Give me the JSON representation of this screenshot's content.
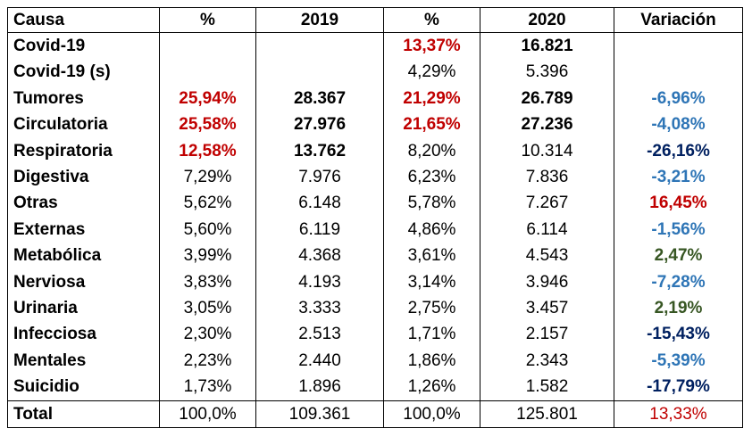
{
  "table": {
    "headers": [
      "Causa",
      "%",
      "2019",
      "%",
      "2020",
      "Variación"
    ],
    "rows": [
      {
        "cause": "Covid-19",
        "pct2019": "",
        "v2019": "",
        "pct2020": "13,37%",
        "v2020": "16.821",
        "variation": ""
      },
      {
        "cause": "Covid-19 (s)",
        "pct2019": "",
        "v2019": "",
        "pct2020": "4,29%",
        "v2020": "5.396",
        "variation": ""
      },
      {
        "cause": "Tumores",
        "pct2019": "25,94%",
        "v2019": "28.367",
        "pct2020": "21,29%",
        "v2020": "26.789",
        "variation": "-6,96%"
      },
      {
        "cause": "Circulatoria",
        "pct2019": "25,58%",
        "v2019": "27.976",
        "pct2020": "21,65%",
        "v2020": "27.236",
        "variation": "-4,08%"
      },
      {
        "cause": "Respiratoria",
        "pct2019": "12,58%",
        "v2019": "13.762",
        "pct2020": "8,20%",
        "v2020": "10.314",
        "variation": "-26,16%"
      },
      {
        "cause": "Digestiva",
        "pct2019": "7,29%",
        "v2019": "7.976",
        "pct2020": "6,23%",
        "v2020": "7.836",
        "variation": "-3,21%"
      },
      {
        "cause": "Otras",
        "pct2019": "5,62%",
        "v2019": "6.148",
        "pct2020": "5,78%",
        "v2020": "7.267",
        "variation": "16,45%"
      },
      {
        "cause": "Externas",
        "pct2019": "5,60%",
        "v2019": "6.119",
        "pct2020": "4,86%",
        "v2020": "6.114",
        "variation": "-1,56%"
      },
      {
        "cause": "Metabólica",
        "pct2019": "3,99%",
        "v2019": "4.368",
        "pct2020": "3,61%",
        "v2020": "4.543",
        "variation": "2,47%"
      },
      {
        "cause": "Nerviosa",
        "pct2019": "3,83%",
        "v2019": "4.193",
        "pct2020": "3,14%",
        "v2020": "3.946",
        "variation": "-7,28%"
      },
      {
        "cause": "Urinaria",
        "pct2019": "3,05%",
        "v2019": "3.333",
        "pct2020": "2,75%",
        "v2020": "3.457",
        "variation": "2,19%"
      },
      {
        "cause": "Infecciosa",
        "pct2019": "2,30%",
        "v2019": "2.513",
        "pct2020": "1,71%",
        "v2020": "2.157",
        "variation": "-15,43%"
      },
      {
        "cause": "Mentales",
        "pct2019": "2,23%",
        "v2019": "2.440",
        "pct2020": "1,86%",
        "v2020": "2.343",
        "variation": "-5,39%"
      },
      {
        "cause": "Suicidio",
        "pct2019": "1,73%",
        "v2019": "1.896",
        "pct2020": "1,26%",
        "v2020": "1.582",
        "variation": "-17,79%"
      }
    ],
    "total": {
      "cause": "Total",
      "pct2019": "100,0%",
      "v2019": "109.361",
      "pct2020": "100,0%",
      "v2020": "125.801",
      "variation": "13,33%"
    }
  },
  "colors": {
    "red": "#C00000",
    "blue": "#2E75B6",
    "navy": "#002060",
    "green": "#375623"
  }
}
